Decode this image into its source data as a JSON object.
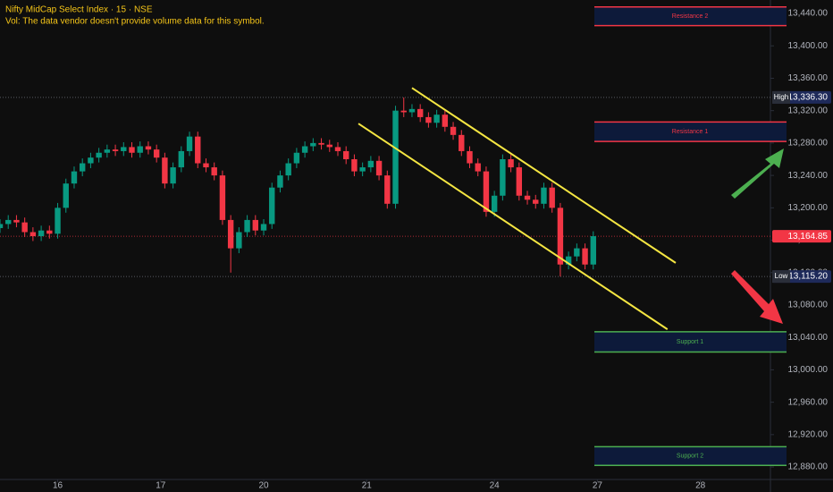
{
  "chart_data": {
    "type": "candlestick",
    "title": "Nifty MidCap Select Index · 15 · NSE",
    "subtitle": "Vol: The data vendor doesn't provide volume data for this symbol.",
    "up_color": "#089981",
    "down_color": "#f23645",
    "x": [
      0,
      2,
      4,
      6,
      8,
      10,
      12,
      14,
      16,
      18,
      20,
      22,
      24,
      26,
      28,
      30,
      32,
      34,
      36,
      38,
      40,
      42,
      44,
      46,
      48,
      50,
      52,
      54,
      56,
      58,
      60,
      62,
      64,
      66,
      68,
      70,
      72,
      74,
      76,
      78,
      80,
      82,
      84,
      86,
      88,
      90,
      92,
      94,
      96,
      98,
      100,
      102,
      104,
      106,
      108,
      110,
      112,
      114,
      116,
      118,
      120,
      122,
      124,
      126,
      128,
      130,
      132,
      134,
      136,
      138,
      140,
      142,
      144
    ],
    "open": [
      13175,
      13180,
      13185,
      13182,
      13170,
      13165,
      13172,
      13168,
      13200,
      13230,
      13245,
      13255,
      13262,
      13268,
      13272,
      13270,
      13275,
      13268,
      13276,
      13272,
      13262,
      13230,
      13250,
      13270,
      13288,
      13255,
      13250,
      13240,
      13185,
      13150,
      13170,
      13185,
      13172,
      13180,
      13225,
      13240,
      13255,
      13268,
      13276,
      13280,
      13278,
      13275,
      13270,
      13260,
      13245,
      13250,
      13258,
      13240,
      13205,
      13320,
      13318,
      13322,
      13312,
      13305,
      13315,
      13300,
      13290,
      13270,
      13255,
      13245,
      13195,
      13215,
      13260,
      13250,
      13215,
      13210,
      13205,
      13225,
      13200,
      13130,
      13140,
      13150,
      13130
    ],
    "high": [
      13186,
      13191,
      13191,
      13188,
      13176,
      13178,
      13178,
      13206,
      13236,
      13251,
      13261,
      13268,
      13274,
      13278,
      13278,
      13281,
      13281,
      13282,
      13282,
      13278,
      13268,
      13256,
      13276,
      13294,
      13294,
      13261,
      13256,
      13246,
      13191,
      13176,
      13191,
      13191,
      13186,
      13231,
      13246,
      13261,
      13274,
      13282,
      13286,
      13286,
      13284,
      13281,
      13276,
      13266,
      13256,
      13264,
      13264,
      13246,
      13326,
      13336.3,
      13328,
      13328,
      13318,
      13321,
      13321,
      13306,
      13296,
      13276,
      13261,
      13251,
      13221,
      13266,
      13266,
      13256,
      13221,
      13216,
      13231,
      13231,
      13206,
      13146,
      13156,
      13156,
      13171
    ],
    "low": [
      13169,
      13174,
      13176,
      13164,
      13159,
      13159,
      13162,
      13162,
      13194,
      13224,
      13239,
      13249,
      13256,
      13262,
      13264,
      13264,
      13262,
      13262,
      13266,
      13256,
      13224,
      13224,
      13244,
      13264,
      13249,
      13244,
      13234,
      13179,
      13120,
      13144,
      13164,
      13166,
      13166,
      13174,
      13219,
      13234,
      13249,
      13262,
      13270,
      13272,
      13269,
      13264,
      13254,
      13239,
      13239,
      13244,
      13234,
      13199,
      13199,
      13312,
      13312,
      13306,
      13299,
      13299,
      13294,
      13284,
      13264,
      13249,
      13239,
      13189,
      13189,
      13209,
      13244,
      13209,
      13204,
      13199,
      13199,
      13194,
      13115.2,
      13124,
      13134,
      13124,
      13124
    ],
    "close": [
      13180,
      13185,
      13182,
      13170,
      13165,
      13172,
      13168,
      13200,
      13230,
      13245,
      13255,
      13262,
      13268,
      13272,
      13270,
      13275,
      13268,
      13276,
      13272,
      13262,
      13230,
      13250,
      13270,
      13288,
      13255,
      13250,
      13240,
      13185,
      13150,
      13170,
      13185,
      13172,
      13180,
      13225,
      13240,
      13255,
      13268,
      13276,
      13280,
      13278,
      13275,
      13270,
      13260,
      13245,
      13250,
      13258,
      13240,
      13205,
      13320,
      13318,
      13322,
      13312,
      13305,
      13315,
      13300,
      13290,
      13270,
      13255,
      13245,
      13195,
      13215,
      13260,
      13250,
      13215,
      13210,
      13205,
      13225,
      13200,
      13130,
      13140,
      13150,
      13130,
      13165
    ],
    "xlim": [
      0,
      187
    ],
    "xticks": [
      {
        "value": 14,
        "label": "16"
      },
      {
        "value": 39,
        "label": "17"
      },
      {
        "value": 64,
        "label": "20"
      },
      {
        "value": 89,
        "label": "21"
      },
      {
        "value": 120,
        "label": "24"
      },
      {
        "value": 145,
        "label": "27"
      },
      {
        "value": 170,
        "label": "28"
      }
    ],
    "ylim": [
      12864.6,
      13456.6
    ],
    "yticks": [
      {
        "value": 12880,
        "label": "12,880.00"
      },
      {
        "value": 12920,
        "label": "12,920.00"
      },
      {
        "value": 12960,
        "label": "12,960.00"
      },
      {
        "value": 13000,
        "label": "13,000.00"
      },
      {
        "value": 13040,
        "label": "13,040.00"
      },
      {
        "value": 13080,
        "label": "13,080.00"
      },
      {
        "value": 13120,
        "label": "13,120.00"
      },
      {
        "value": 13160,
        "label": "13,160.00"
      },
      {
        "value": 13200,
        "label": "13,200.00"
      },
      {
        "value": 13240,
        "label": "13,240.00"
      },
      {
        "value": 13280,
        "label": "13,280.00"
      },
      {
        "value": 13320,
        "label": "13,320.00"
      },
      {
        "value": 13360,
        "label": "13,360.00"
      },
      {
        "value": 13400,
        "label": "13,400.00"
      },
      {
        "value": 13440,
        "label": "13,440.00"
      }
    ],
    "zones": [
      {
        "name": "Resistance 2",
        "low": 13425,
        "high": 13448,
        "color": "#f23645"
      },
      {
        "name": "Resistance 1",
        "low": 13282,
        "high": 13306,
        "color": "#f23645"
      },
      {
        "name": "Support 1",
        "low": 13022,
        "high": 13047,
        "color": "#4caf50"
      },
      {
        "name": "Support 2",
        "low": 12882,
        "high": 12905,
        "color": "#4caf50"
      }
    ],
    "trendlines": [
      {
        "x": [
          100,
          164
        ],
        "y": [
          13348,
          13132
        ],
        "color": "#f5e642"
      },
      {
        "x": [
          87,
          162
        ],
        "y": [
          13304,
          13050
        ],
        "color": "#f5e642"
      }
    ],
    "markers": [
      {
        "label": "High",
        "value": 13336.3,
        "value_label": "13,336.30"
      },
      {
        "label": "Low",
        "value": 13115.2,
        "value_label": "13,115.20"
      },
      {
        "value": 13164.85,
        "value_label": "13,164.85",
        "color": "#f23645"
      }
    ]
  }
}
